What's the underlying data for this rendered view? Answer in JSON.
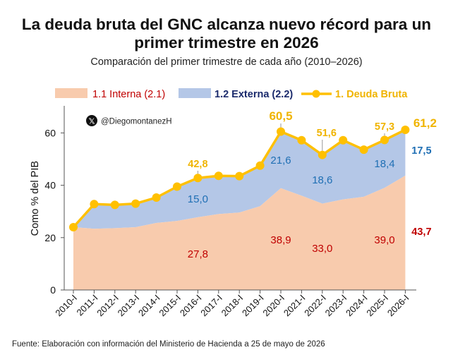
{
  "header": {
    "title_line1": "La deuda bruta del GNC alcanza nuevo récord para un",
    "title_line2": "primer trimestre en 2026",
    "subtitle": "Comparación del primer trimestre de cada año (2010–2026)"
  },
  "watermark": {
    "handle": "@Diegomontanez",
    "handle_suffix": "H",
    "icon": "x-logo-icon"
  },
  "footer": {
    "source": "Fuente: Elaboración con información del Ministerio de Hacienda a 25 de mayo de 2026"
  },
  "colors": {
    "interna": "#f8cbad",
    "externa": "#b4c7e7",
    "bruta": "#ffc000",
    "interna_label": "#c00000",
    "externa_label": "#1f6fb4",
    "bruta_label": "#f0b400"
  },
  "chart_data": {
    "type": "area",
    "ylabel": "Como % del PIB",
    "xlabel": "",
    "ylim": [
      0,
      70
    ],
    "yticks": [
      0,
      20,
      40,
      60
    ],
    "grid": false,
    "legend_placement": "top",
    "categories": [
      "2010-I",
      "2011-I",
      "2012-I",
      "2013-I",
      "2014-I",
      "2015-I",
      "2016-I",
      "2017-I",
      "2018-I",
      "2019-I",
      "2020-I",
      "2021-I",
      "2022-I",
      "2023-I",
      "2024-I",
      "2025-I",
      "2026-I"
    ],
    "series": [
      {
        "name": "1.1  Interna (2.1)",
        "kind": "area",
        "values": [
          24.0,
          23.4,
          23.6,
          24.0,
          25.6,
          26.4,
          27.8,
          29.0,
          29.6,
          32.0,
          38.9,
          36.0,
          33.0,
          34.6,
          35.6,
          39.0,
          43.7
        ]
      },
      {
        "name": "1.2 Externa (2.2)",
        "kind": "stacked-area",
        "values": [
          0.0,
          9.4,
          8.9,
          9.0,
          9.7,
          13.1,
          15.0,
          14.6,
          13.9,
          15.5,
          21.6,
          21.2,
          18.6,
          22.6,
          18.0,
          18.4,
          17.5
        ]
      },
      {
        "name": "1. Deuda Bruta",
        "kind": "line",
        "values": [
          24.0,
          32.8,
          32.5,
          33.0,
          35.3,
          39.5,
          42.8,
          43.6,
          43.5,
          47.5,
          60.5,
          57.2,
          51.6,
          57.2,
          53.6,
          57.3,
          61.2
        ]
      }
    ],
    "data_labels": {
      "interna": [
        {
          "i": 6,
          "text": "27,8"
        },
        {
          "i": 10,
          "text": "38,9"
        },
        {
          "i": 12,
          "text": "33,0"
        },
        {
          "i": 15,
          "text": "39,0"
        },
        {
          "i": 16,
          "text": "43,7"
        }
      ],
      "externa": [
        {
          "i": 6,
          "text": "15,0"
        },
        {
          "i": 10,
          "text": "21,6"
        },
        {
          "i": 12,
          "text": "18,6"
        },
        {
          "i": 15,
          "text": "18,4"
        },
        {
          "i": 16,
          "text": "17,5"
        }
      ],
      "bruta": [
        {
          "i": 6,
          "text": "42,8"
        },
        {
          "i": 10,
          "text": "60,5"
        },
        {
          "i": 12,
          "text": "51,6"
        },
        {
          "i": 15,
          "text": "57,3"
        },
        {
          "i": 16,
          "text": "61,2"
        }
      ]
    }
  }
}
